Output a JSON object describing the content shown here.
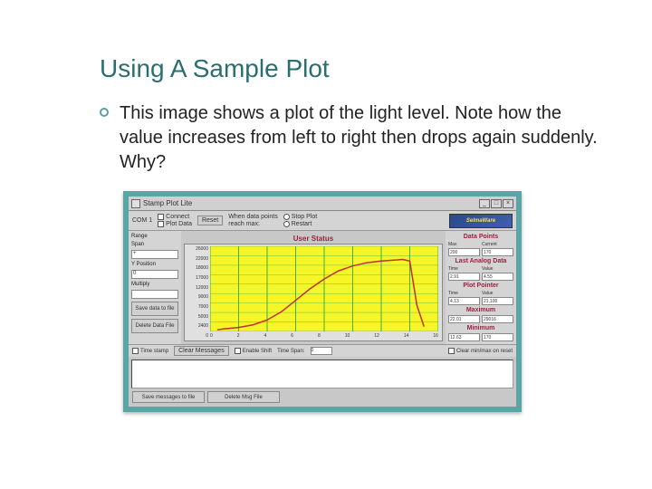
{
  "slide": {
    "title": "Using A Sample Plot",
    "bullet_text": "This image shows a plot of the light level.  Note how the value increases from left to right then drops again suddenly.  Why?"
  },
  "frame_color": "#5aa5a5",
  "app": {
    "title": "Stamp Plot Lite",
    "win_buttons": [
      "_",
      "□",
      "×"
    ],
    "toolbar": {
      "com_label": "COM 1",
      "connect_label": "Connect",
      "plotdata_label": "Plot Data",
      "reset_label": "Reset",
      "datapoints_text": "When data points",
      "reachmax_text": "reach max:",
      "stopplot_label": "Stop Plot",
      "restart_label": "Restart",
      "logo_text": "SelmaWare"
    },
    "left_panel": {
      "range_label": "Range",
      "span_label": "Span",
      "span_value": "+",
      "ypos_label": "Y Position",
      "ypos_value": "0",
      "multiply_label": "Multiply",
      "savedata_label": "Save data to file",
      "deletedata_label": "Delete Data File"
    },
    "chart": {
      "title": "User Status",
      "type": "line",
      "background_color": "#f5f528",
      "grid_color": "#40b040",
      "line_color": "#c03030",
      "line_width": 1.5,
      "xlim": [
        0,
        16
      ],
      "ylim": [
        0,
        26000
      ],
      "ytick_labels": [
        "26000",
        "22000",
        "18000",
        "17000",
        "12000",
        "9000",
        "7000",
        "5000",
        "2400",
        "0"
      ],
      "xtick_labels": [
        "0",
        "2",
        "4",
        "6",
        "8",
        "10",
        "12",
        "14",
        "16"
      ],
      "xgrid_count": 8,
      "ygrid_count": 9,
      "data_x": [
        0.5,
        1,
        2,
        3,
        4,
        5,
        6,
        7,
        8,
        9,
        10,
        11,
        12,
        13,
        13.5,
        14,
        14.5,
        15
      ],
      "data_y": [
        500,
        800,
        1200,
        2000,
        3500,
        6000,
        9500,
        13000,
        16000,
        18500,
        20000,
        21000,
        21500,
        21800,
        22000,
        21500,
        8000,
        1500
      ]
    },
    "right_panel": {
      "datapoints_title": "Data Points",
      "max_label": "Max",
      "current_label": "Current",
      "dp_max": "200",
      "dp_current": "170",
      "lastanalog_title": "Last Analog Data",
      "time_label": "Time",
      "value_label": "Value",
      "la_time": "2.91",
      "la_value": "4.55",
      "plotpointer_title": "Plot Pointer",
      "pp_time": "4.13",
      "pp_value": "21,100",
      "max_title": "Maximum",
      "mx_time": "22.01",
      "mx_value": "29016",
      "min_title": "Minimum",
      "mn_time": "12.63",
      "mn_value": "170"
    },
    "bottom1": {
      "timestamp_label": "Time stamp",
      "clearmsg_label": "Clear Messages",
      "enableshift_label": "Enable Shift",
      "timespan_label": "Time Span:",
      "timespan_value": "0",
      "clearminmax_label": "Clear min/max on reset"
    },
    "bottom2": {
      "savemsg_label": "Save messages to file",
      "deletemsg_label": "Delete Msg File"
    }
  }
}
